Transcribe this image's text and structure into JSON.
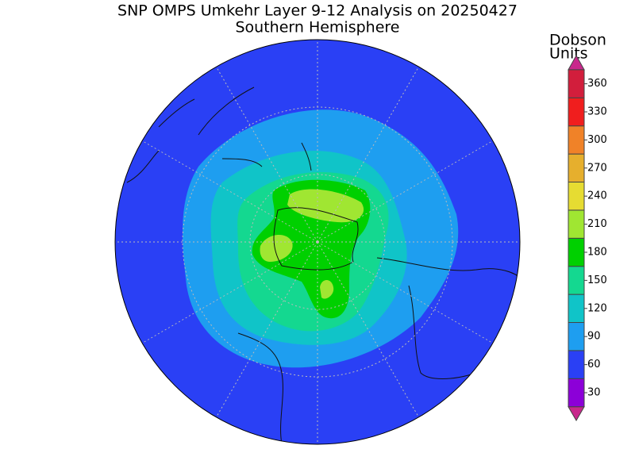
{
  "title": "SNP OMPS Umkehr Layer 9-12 Analysis on 20250427",
  "subtitle": "Southern Hemisphere",
  "colorbar": {
    "label": [
      "Dobson",
      "Units"
    ],
    "ticks": [
      30,
      60,
      90,
      120,
      150,
      180,
      210,
      240,
      270,
      300,
      330,
      360
    ],
    "colors": [
      "#8c00d8",
      "#2a40f5",
      "#1e9ef0",
      "#10c4c8",
      "#14d890",
      "#00d000",
      "#a0e632",
      "#e6dc32",
      "#e6af2d",
      "#f08228",
      "#f01e1e",
      "#d21e3c"
    ],
    "under_color": "#c8288c",
    "over_color": "#c8288c"
  }
}
